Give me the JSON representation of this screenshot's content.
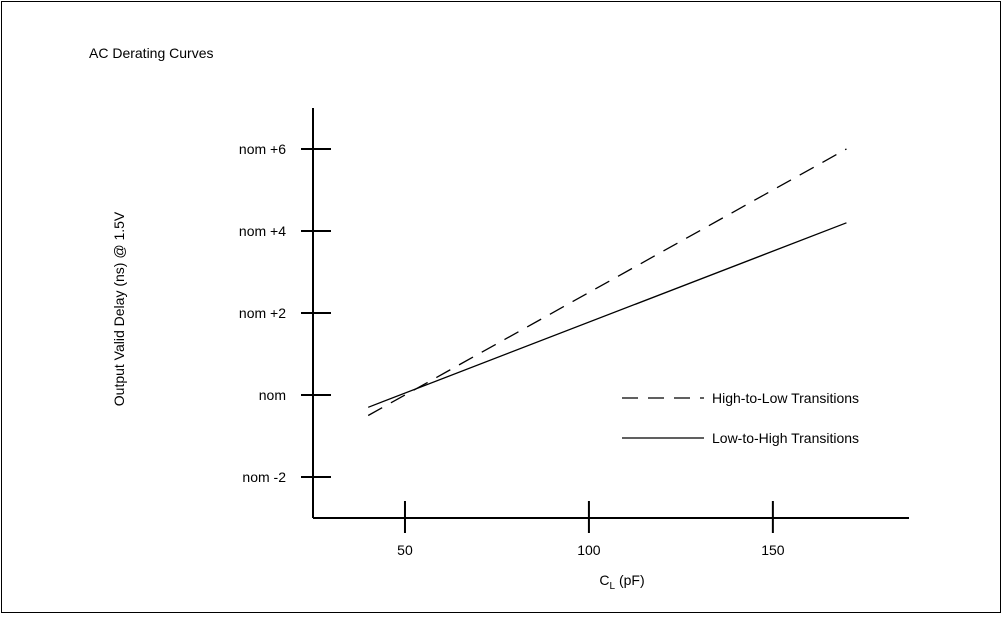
{
  "chart_data": {
    "type": "line",
    "title": "AC Derating Curves",
    "xlabel": {
      "main": "C",
      "sub": "L",
      "suffix": " (pF)"
    },
    "ylabel": "Output Valid Delay (ns) @ 1.5V",
    "xlim": [
      25,
      187
    ],
    "ylim": [
      -3,
      7
    ],
    "x_ticks": [
      {
        "value": 50,
        "label": "50"
      },
      {
        "value": 100,
        "label": "100"
      },
      {
        "value": 150,
        "label": "150"
      }
    ],
    "y_ticks": [
      {
        "value": -2,
        "label": "nom -2"
      },
      {
        "value": 0,
        "label": "nom"
      },
      {
        "value": 2,
        "label": "nom +2"
      },
      {
        "value": 4,
        "label": "nom +4"
      },
      {
        "value": 6,
        "label": "nom +6"
      }
    ],
    "series": [
      {
        "name": "High-to-Low Transitions",
        "style": "dashed",
        "x": [
          40,
          170
        ],
        "y": [
          -0.5,
          6.0
        ]
      },
      {
        "name": "Low-to-High Transitions",
        "style": "solid",
        "x": [
          40,
          170
        ],
        "y": [
          -0.3,
          4.2
        ]
      }
    ],
    "grid": false,
    "legend_position": "lower-right"
  }
}
